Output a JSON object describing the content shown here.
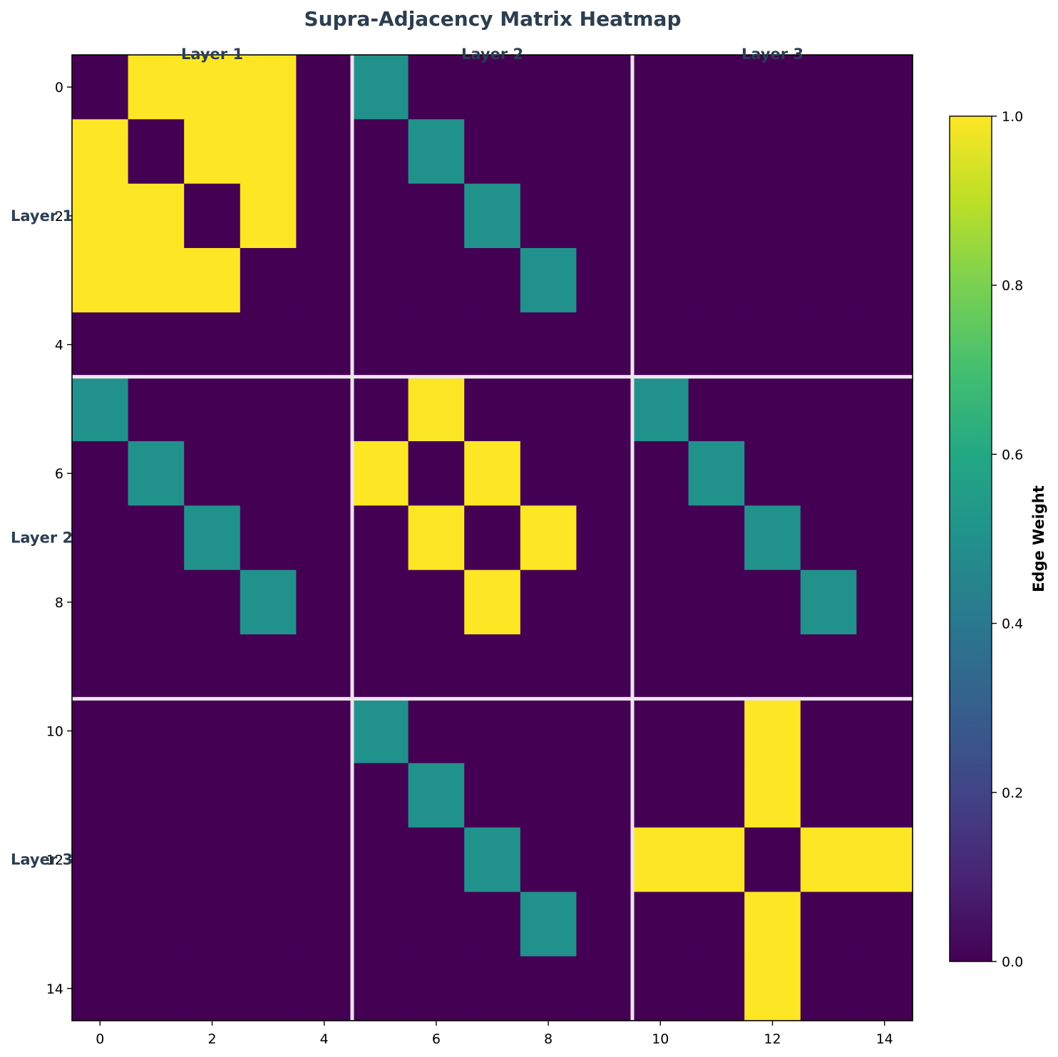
{
  "chart_data": {
    "type": "heatmap",
    "title": "Supra-Adjacency Matrix Heatmap",
    "xlabel": "",
    "ylabel": "",
    "colormap": "viridis",
    "size": 15,
    "xlim": [
      -0.5,
      14.5
    ],
    "ylim": [
      14.5,
      -0.5
    ],
    "x_ticks": [
      0,
      2,
      4,
      6,
      8,
      10,
      12,
      14
    ],
    "y_ticks": [
      0,
      2,
      4,
      6,
      8,
      10,
      12,
      14
    ],
    "block_size": 5,
    "layer_labels": [
      "Layer 1",
      "Layer 2",
      "Layer 3"
    ],
    "separator_color": "#eee4ee",
    "colorbar": {
      "label": "Edge Weight",
      "min": 0.0,
      "max": 1.0,
      "ticks": [
        "0.0",
        "0.2",
        "0.4",
        "0.6",
        "0.8",
        "1.0"
      ]
    },
    "matrix": [
      [
        0,
        1,
        1,
        1,
        0,
        0.5,
        0,
        0,
        0,
        0,
        0,
        0,
        0,
        0,
        0
      ],
      [
        1,
        0,
        1,
        1,
        0,
        0,
        0.5,
        0,
        0,
        0,
        0,
        0,
        0,
        0,
        0
      ],
      [
        1,
        1,
        0,
        1,
        0,
        0,
        0,
        0.5,
        0,
        0,
        0,
        0,
        0,
        0,
        0
      ],
      [
        1,
        1,
        1,
        0,
        0,
        0,
        0,
        0,
        0.5,
        0,
        0,
        0,
        0,
        0,
        0
      ],
      [
        0,
        0,
        0,
        0,
        0,
        0,
        0,
        0,
        0,
        0,
        0,
        0,
        0,
        0,
        0
      ],
      [
        0.5,
        0,
        0,
        0,
        0,
        0,
        1,
        0,
        0,
        0,
        0.5,
        0,
        0,
        0,
        0
      ],
      [
        0,
        0.5,
        0,
        0,
        0,
        1,
        0,
        1,
        0,
        0,
        0,
        0.5,
        0,
        0,
        0
      ],
      [
        0,
        0,
        0.5,
        0,
        0,
        0,
        1,
        0,
        1,
        0,
        0,
        0,
        0.5,
        0,
        0
      ],
      [
        0,
        0,
        0,
        0.5,
        0,
        0,
        0,
        1,
        0,
        0,
        0,
        0,
        0,
        0.5,
        0
      ],
      [
        0,
        0,
        0,
        0,
        0,
        0,
        0,
        0,
        0,
        0,
        0,
        0,
        0,
        0,
        0
      ],
      [
        0,
        0,
        0,
        0,
        0,
        0.5,
        0,
        0,
        0,
        0,
        0,
        0,
        1,
        0,
        0
      ],
      [
        0,
        0,
        0,
        0,
        0,
        0,
        0.5,
        0,
        0,
        0,
        0,
        0,
        1,
        0,
        0
      ],
      [
        0,
        0,
        0,
        0,
        0,
        0,
        0,
        0.5,
        0,
        0,
        1,
        1,
        0,
        1,
        1
      ],
      [
        0,
        0,
        0,
        0,
        0,
        0,
        0,
        0,
        0.5,
        0,
        0,
        0,
        1,
        0,
        0
      ],
      [
        0,
        0,
        0,
        0,
        0,
        0,
        0,
        0,
        0,
        0,
        0,
        0,
        1,
        0,
        0
      ]
    ]
  }
}
